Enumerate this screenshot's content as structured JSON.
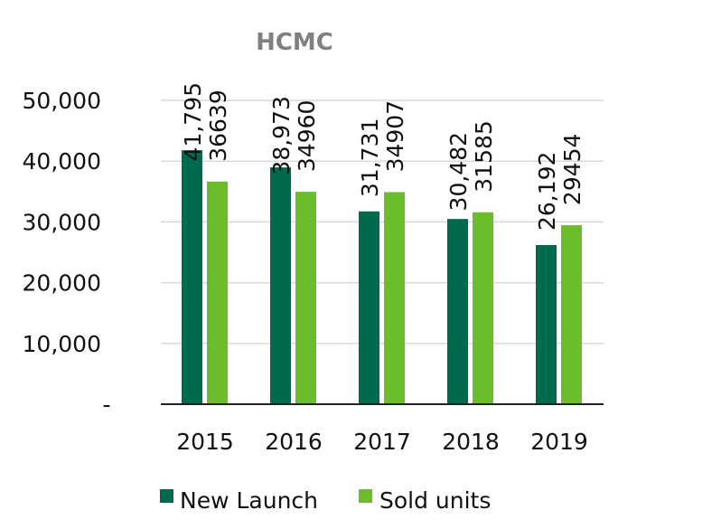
{
  "chart_data": {
    "type": "bar",
    "title": "HCMC",
    "categories": [
      "2015",
      "2016",
      "2017",
      "2018",
      "2019"
    ],
    "series": [
      {
        "name": "New Launch",
        "color": "#006a4e",
        "values": [
          41795,
          38973,
          31731,
          30482,
          26192
        ],
        "labels": [
          "41,795",
          "38,973",
          "31,731",
          "30,482",
          "26,192"
        ]
      },
      {
        "name": "Sold units",
        "color": "#6cbd2b",
        "values": [
          36639,
          34960,
          34907,
          31585,
          29454
        ],
        "labels": [
          "36639",
          "34960",
          "34907",
          "31585",
          "29454"
        ]
      }
    ],
    "ylim": [
      0,
      50000
    ],
    "yticks": [
      0,
      10000,
      20000,
      30000,
      40000,
      50000
    ],
    "ytick_labels": [
      "-",
      "10,000",
      "20,000",
      "30,000",
      "40,000",
      "50,000"
    ],
    "xlabel": "",
    "ylabel": "",
    "grid": true,
    "legend": "bottom"
  }
}
